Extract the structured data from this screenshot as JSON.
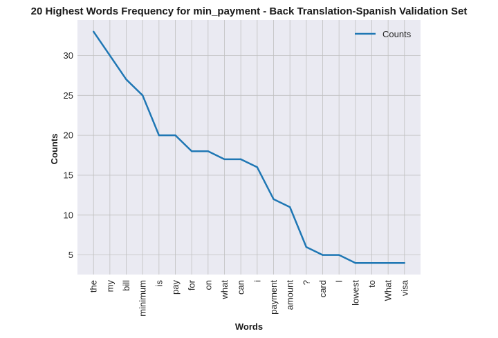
{
  "chart_data": {
    "type": "line",
    "title": "20 Highest Words Frequency for min_payment - Back Translation-Spanish Validation Set",
    "xlabel": "Words",
    "ylabel": "Counts",
    "categories": [
      "the",
      "my",
      "bill",
      "minimum",
      "is",
      "pay",
      "for",
      "on",
      "what",
      "can",
      "i",
      "payment",
      "amount",
      "?",
      "card",
      "I",
      "lowest",
      "to",
      "What",
      "visa"
    ],
    "series": [
      {
        "name": "Counts",
        "values": [
          33,
          30,
          27,
          25,
          20,
          20,
          18,
          18,
          17,
          17,
          16,
          12,
          11,
          6,
          5,
          5,
          4,
          4,
          4,
          4
        ]
      }
    ],
    "yticks": [
      5,
      10,
      15,
      20,
      25,
      30
    ],
    "ylim": [
      2.55,
      34.45
    ],
    "grid": true,
    "legend_position": "top-right",
    "colors": {
      "background": "#eaeaf2",
      "grid": "#c0c0c0",
      "line": "#1f77b4"
    }
  }
}
